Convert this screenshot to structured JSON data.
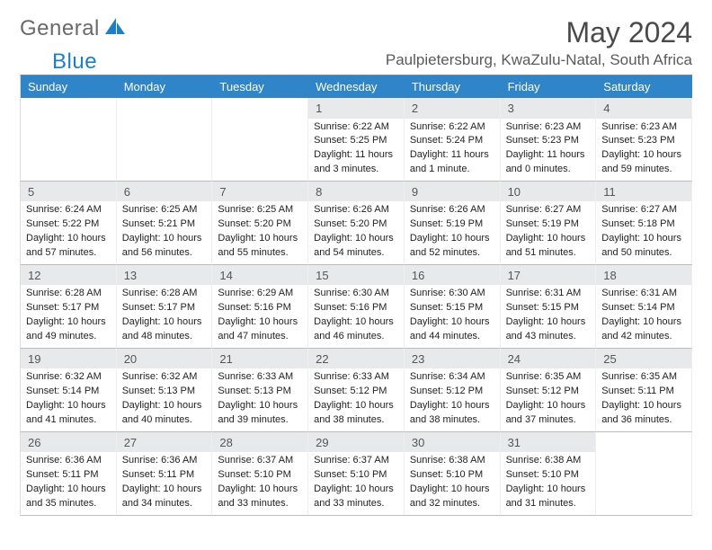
{
  "logo": {
    "word1": "General",
    "word2": "Blue"
  },
  "title": "May 2024",
  "location": "Paulpietersburg, KwaZulu-Natal, South Africa",
  "colors": {
    "header_bg": "#2f85c7",
    "header_fg": "#ffffff",
    "daynum_bg": "#e7e9eb",
    "page_bg": "#ffffff",
    "logo_blue": "#1f7fc4",
    "logo_text": "#6a6a6a"
  },
  "day_headers": [
    "Sunday",
    "Monday",
    "Tuesday",
    "Wednesday",
    "Thursday",
    "Friday",
    "Saturday"
  ],
  "weeks": [
    [
      null,
      null,
      null,
      {
        "n": "1",
        "sr": "Sunrise: 6:22 AM",
        "ss": "Sunset: 5:25 PM",
        "d1": "Daylight: 11 hours",
        "d2": "and 3 minutes."
      },
      {
        "n": "2",
        "sr": "Sunrise: 6:22 AM",
        "ss": "Sunset: 5:24 PM",
        "d1": "Daylight: 11 hours",
        "d2": "and 1 minute."
      },
      {
        "n": "3",
        "sr": "Sunrise: 6:23 AM",
        "ss": "Sunset: 5:23 PM",
        "d1": "Daylight: 11 hours",
        "d2": "and 0 minutes."
      },
      {
        "n": "4",
        "sr": "Sunrise: 6:23 AM",
        "ss": "Sunset: 5:23 PM",
        "d1": "Daylight: 10 hours",
        "d2": "and 59 minutes."
      }
    ],
    [
      {
        "n": "5",
        "sr": "Sunrise: 6:24 AM",
        "ss": "Sunset: 5:22 PM",
        "d1": "Daylight: 10 hours",
        "d2": "and 57 minutes."
      },
      {
        "n": "6",
        "sr": "Sunrise: 6:25 AM",
        "ss": "Sunset: 5:21 PM",
        "d1": "Daylight: 10 hours",
        "d2": "and 56 minutes."
      },
      {
        "n": "7",
        "sr": "Sunrise: 6:25 AM",
        "ss": "Sunset: 5:20 PM",
        "d1": "Daylight: 10 hours",
        "d2": "and 55 minutes."
      },
      {
        "n": "8",
        "sr": "Sunrise: 6:26 AM",
        "ss": "Sunset: 5:20 PM",
        "d1": "Daylight: 10 hours",
        "d2": "and 54 minutes."
      },
      {
        "n": "9",
        "sr": "Sunrise: 6:26 AM",
        "ss": "Sunset: 5:19 PM",
        "d1": "Daylight: 10 hours",
        "d2": "and 52 minutes."
      },
      {
        "n": "10",
        "sr": "Sunrise: 6:27 AM",
        "ss": "Sunset: 5:19 PM",
        "d1": "Daylight: 10 hours",
        "d2": "and 51 minutes."
      },
      {
        "n": "11",
        "sr": "Sunrise: 6:27 AM",
        "ss": "Sunset: 5:18 PM",
        "d1": "Daylight: 10 hours",
        "d2": "and 50 minutes."
      }
    ],
    [
      {
        "n": "12",
        "sr": "Sunrise: 6:28 AM",
        "ss": "Sunset: 5:17 PM",
        "d1": "Daylight: 10 hours",
        "d2": "and 49 minutes."
      },
      {
        "n": "13",
        "sr": "Sunrise: 6:28 AM",
        "ss": "Sunset: 5:17 PM",
        "d1": "Daylight: 10 hours",
        "d2": "and 48 minutes."
      },
      {
        "n": "14",
        "sr": "Sunrise: 6:29 AM",
        "ss": "Sunset: 5:16 PM",
        "d1": "Daylight: 10 hours",
        "d2": "and 47 minutes."
      },
      {
        "n": "15",
        "sr": "Sunrise: 6:30 AM",
        "ss": "Sunset: 5:16 PM",
        "d1": "Daylight: 10 hours",
        "d2": "and 46 minutes."
      },
      {
        "n": "16",
        "sr": "Sunrise: 6:30 AM",
        "ss": "Sunset: 5:15 PM",
        "d1": "Daylight: 10 hours",
        "d2": "and 44 minutes."
      },
      {
        "n": "17",
        "sr": "Sunrise: 6:31 AM",
        "ss": "Sunset: 5:15 PM",
        "d1": "Daylight: 10 hours",
        "d2": "and 43 minutes."
      },
      {
        "n": "18",
        "sr": "Sunrise: 6:31 AM",
        "ss": "Sunset: 5:14 PM",
        "d1": "Daylight: 10 hours",
        "d2": "and 42 minutes."
      }
    ],
    [
      {
        "n": "19",
        "sr": "Sunrise: 6:32 AM",
        "ss": "Sunset: 5:14 PM",
        "d1": "Daylight: 10 hours",
        "d2": "and 41 minutes."
      },
      {
        "n": "20",
        "sr": "Sunrise: 6:32 AM",
        "ss": "Sunset: 5:13 PM",
        "d1": "Daylight: 10 hours",
        "d2": "and 40 minutes."
      },
      {
        "n": "21",
        "sr": "Sunrise: 6:33 AM",
        "ss": "Sunset: 5:13 PM",
        "d1": "Daylight: 10 hours",
        "d2": "and 39 minutes."
      },
      {
        "n": "22",
        "sr": "Sunrise: 6:33 AM",
        "ss": "Sunset: 5:12 PM",
        "d1": "Daylight: 10 hours",
        "d2": "and 38 minutes."
      },
      {
        "n": "23",
        "sr": "Sunrise: 6:34 AM",
        "ss": "Sunset: 5:12 PM",
        "d1": "Daylight: 10 hours",
        "d2": "and 38 minutes."
      },
      {
        "n": "24",
        "sr": "Sunrise: 6:35 AM",
        "ss": "Sunset: 5:12 PM",
        "d1": "Daylight: 10 hours",
        "d2": "and 37 minutes."
      },
      {
        "n": "25",
        "sr": "Sunrise: 6:35 AM",
        "ss": "Sunset: 5:11 PM",
        "d1": "Daylight: 10 hours",
        "d2": "and 36 minutes."
      }
    ],
    [
      {
        "n": "26",
        "sr": "Sunrise: 6:36 AM",
        "ss": "Sunset: 5:11 PM",
        "d1": "Daylight: 10 hours",
        "d2": "and 35 minutes."
      },
      {
        "n": "27",
        "sr": "Sunrise: 6:36 AM",
        "ss": "Sunset: 5:11 PM",
        "d1": "Daylight: 10 hours",
        "d2": "and 34 minutes."
      },
      {
        "n": "28",
        "sr": "Sunrise: 6:37 AM",
        "ss": "Sunset: 5:10 PM",
        "d1": "Daylight: 10 hours",
        "d2": "and 33 minutes."
      },
      {
        "n": "29",
        "sr": "Sunrise: 6:37 AM",
        "ss": "Sunset: 5:10 PM",
        "d1": "Daylight: 10 hours",
        "d2": "and 33 minutes."
      },
      {
        "n": "30",
        "sr": "Sunrise: 6:38 AM",
        "ss": "Sunset: 5:10 PM",
        "d1": "Daylight: 10 hours",
        "d2": "and 32 minutes."
      },
      {
        "n": "31",
        "sr": "Sunrise: 6:38 AM",
        "ss": "Sunset: 5:10 PM",
        "d1": "Daylight: 10 hours",
        "d2": "and 31 minutes."
      },
      null
    ]
  ]
}
